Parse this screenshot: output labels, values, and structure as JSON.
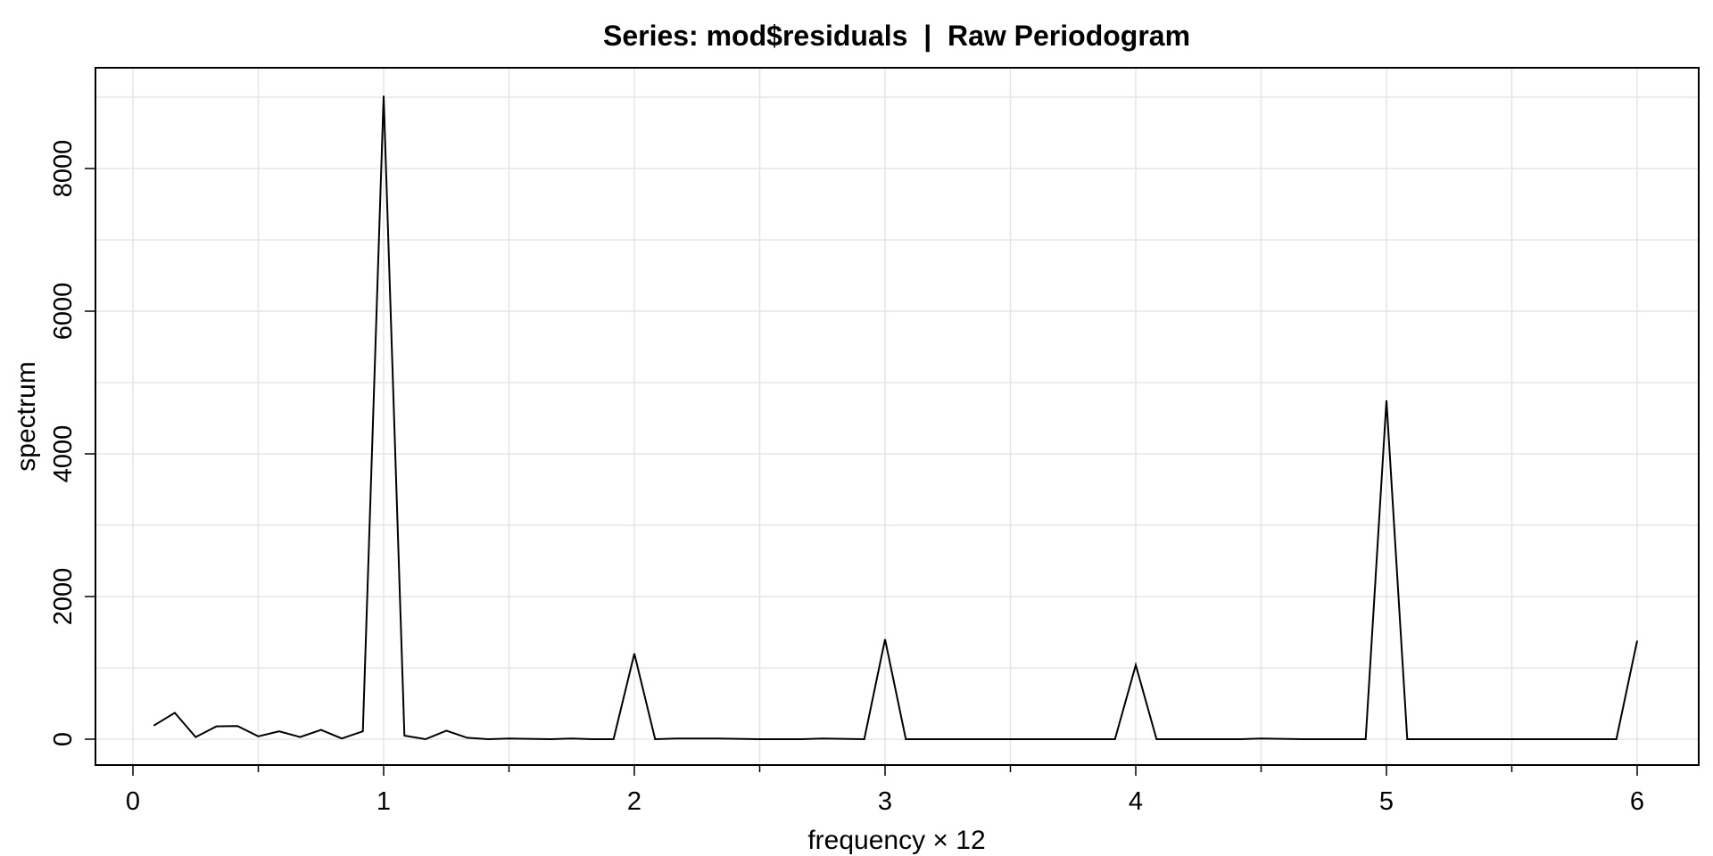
{
  "chart_data": {
    "type": "line",
    "title": "Series: mod$residuals  |  Raw Periodogram",
    "xlabel": "frequency × 12",
    "ylabel": "spectrum",
    "xlim": [
      0,
      6
    ],
    "ylim": [
      0,
      9000
    ],
    "x_ticks": [
      0,
      1,
      2,
      3,
      4,
      5,
      6
    ],
    "x_minor_ticks": [
      0.5,
      1.5,
      2.5,
      3.5,
      4.5,
      5.5
    ],
    "y_ticks": [
      0,
      2000,
      4000,
      6000,
      8000
    ],
    "grid": true,
    "line_color": "#000000",
    "grid_color": "#e5e5e5",
    "series": [
      {
        "x": [
          0.083,
          0.167,
          0.25,
          0.333,
          0.417,
          0.5,
          0.583,
          0.667,
          0.75,
          0.833,
          0.917,
          1.0,
          1.083,
          1.167,
          1.25,
          1.333,
          1.417,
          1.5,
          1.583,
          1.667,
          1.75,
          1.833,
          1.917,
          2.0,
          2.083,
          2.167,
          2.25,
          2.333,
          2.417,
          2.5,
          2.583,
          2.667,
          2.75,
          2.833,
          2.917,
          3.0,
          3.083,
          3.167,
          3.25,
          3.333,
          3.417,
          3.5,
          3.583,
          3.667,
          3.75,
          3.833,
          3.917,
          4.0,
          4.083,
          4.167,
          4.25,
          4.333,
          4.417,
          4.5,
          4.583,
          4.667,
          4.75,
          4.833,
          4.917,
          5.0,
          5.083,
          5.167,
          5.25,
          5.333,
          5.417,
          5.5,
          5.583,
          5.667,
          5.75,
          5.833,
          5.917,
          6.0
        ],
        "y": [
          190,
          370,
          30,
          180,
          185,
          40,
          110,
          30,
          130,
          10,
          110,
          9020,
          50,
          0,
          120,
          20,
          0,
          10,
          5,
          0,
          10,
          0,
          0,
          1200,
          0,
          10,
          10,
          10,
          5,
          0,
          0,
          0,
          10,
          5,
          0,
          1400,
          0,
          0,
          0,
          0,
          0,
          0,
          0,
          0,
          0,
          0,
          0,
          1040,
          0,
          0,
          0,
          0,
          0,
          10,
          5,
          0,
          0,
          0,
          0,
          4750,
          0,
          0,
          0,
          0,
          0,
          0,
          0,
          0,
          0,
          0,
          0,
          1380
        ]
      }
    ]
  }
}
